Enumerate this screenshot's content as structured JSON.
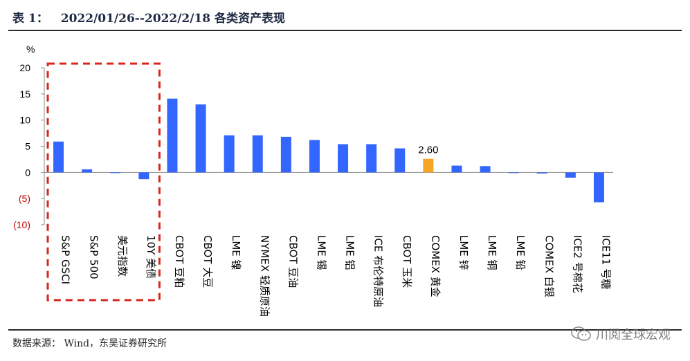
{
  "header": {
    "table_no": "表 1：",
    "title": "2022/01/26--2022/2/18 各类资产表现"
  },
  "footer": {
    "source": "数据来源：  Wind，东吴证券研究所",
    "watermark": "川阅全球宏观",
    "watermark_icon": "wechat-icon"
  },
  "chart_data": {
    "type": "bar",
    "title": "",
    "xlabel": "",
    "ylabel": "%",
    "ylim": [
      -10,
      20
    ],
    "yticks": [
      "20",
      "15",
      "10",
      "5",
      "0",
      "(5)",
      "(10)"
    ],
    "ytick_values": [
      20,
      15,
      10,
      5,
      0,
      -5,
      -10
    ],
    "negative_tick_color": "#cc0000",
    "grid": false,
    "categories": [
      "S&P GSCI",
      "S&P 500",
      "美元指数",
      "10Y 美债",
      "CBOT 豆粕",
      "CBOT 大豆",
      "LME 镍",
      "NYMEX 轻质原油",
      "CBOT 豆油",
      "LME 锡",
      "LME 铝",
      "ICE 布伦特原油",
      "CBOT 玉米",
      "COMEX 黄金",
      "LME 锌",
      "LME 铜",
      "LME 铅",
      "COMEX 白银",
      "ICE2 号棉花",
      "ICE11 号糖"
    ],
    "values": [
      5.9,
      0.6,
      -0.1,
      -1.3,
      14.1,
      13.0,
      7.1,
      7.1,
      6.8,
      6.2,
      5.4,
      5.4,
      4.6,
      2.6,
      1.3,
      1.2,
      0.0,
      -0.2,
      -1.0,
      -5.7
    ],
    "highlight_index": 13,
    "highlight_label": "2.60",
    "colors": {
      "bar": "#3366ff",
      "highlight": "#f5a623",
      "box": "#d9251d"
    },
    "boxed_categories": [
      "S&P GSCI",
      "S&P 500",
      "美元指数",
      "10Y 美债"
    ]
  }
}
